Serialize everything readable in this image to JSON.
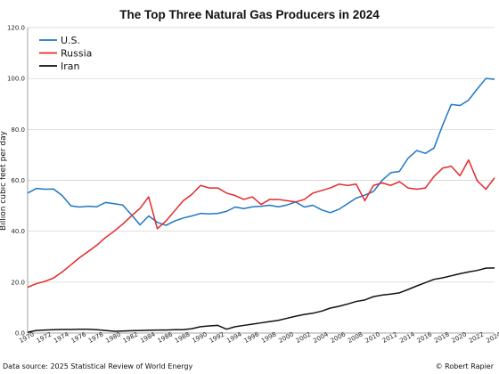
{
  "chart_data": {
    "type": "line",
    "title": "The Top Three Natural Gas Producers in 2024",
    "ylabel": "Billion cubic feet per day",
    "xlabel": "",
    "xlim": [
      1970,
      2024
    ],
    "ylim": [
      0,
      120
    ],
    "y_ticks": [
      "0.0",
      "20.0",
      "40.0",
      "60.0",
      "80.0",
      "100.0",
      "120.0"
    ],
    "x_ticks": [
      "1970",
      "1972",
      "1974",
      "1976",
      "1978",
      "1980",
      "1982",
      "1984",
      "1986",
      "1988",
      "1990",
      "1992",
      "1994",
      "1996",
      "1998",
      "2000",
      "2002",
      "2004",
      "2006",
      "2008",
      "2010",
      "2012",
      "2014",
      "2016",
      "2018",
      "2020",
      "2022",
      "2024"
    ],
    "grid": true,
    "legend_position": "top-left",
    "x": [
      1970,
      1971,
      1972,
      1973,
      1974,
      1975,
      1976,
      1977,
      1978,
      1979,
      1980,
      1981,
      1982,
      1983,
      1984,
      1985,
      1986,
      1987,
      1988,
      1989,
      1990,
      1991,
      1992,
      1993,
      1994,
      1995,
      1996,
      1997,
      1998,
      1999,
      2000,
      2001,
      2002,
      2003,
      2004,
      2005,
      2006,
      2007,
      2008,
      2009,
      2010,
      2011,
      2012,
      2013,
      2014,
      2015,
      2016,
      2017,
      2018,
      2019,
      2020,
      2021,
      2022,
      2023,
      2024
    ],
    "series": [
      {
        "name": "U.S.",
        "color": "#1f77c4",
        "values": [
          55.0,
          56.8,
          56.5,
          56.6,
          54.0,
          50.0,
          49.5,
          49.8,
          49.6,
          51.3,
          50.8,
          50.3,
          46.5,
          42.5,
          46.0,
          43.5,
          42.3,
          44.0,
          45.2,
          46.0,
          47.0,
          46.8,
          47.0,
          47.8,
          49.5,
          48.9,
          49.6,
          49.8,
          50.2,
          49.6,
          50.3,
          51.5,
          49.5,
          50.2,
          48.4,
          47.3,
          48.6,
          50.8,
          53.0,
          54.2,
          55.6,
          60.0,
          63.0,
          63.5,
          68.7,
          71.7,
          70.6,
          72.7,
          81.7,
          89.8,
          89.4,
          91.5,
          95.9,
          100.0,
          99.7
        ]
      },
      {
        "name": "Russia",
        "color": "#e3282c",
        "values": [
          18.0,
          19.4,
          20.3,
          21.6,
          24.0,
          26.8,
          29.6,
          32.0,
          34.5,
          37.5,
          40.0,
          42.8,
          46.0,
          49.0,
          53.5,
          41.0,
          44.0,
          48.0,
          52.0,
          54.5,
          58.0,
          57.0,
          57.0,
          55.0,
          54.0,
          52.5,
          53.5,
          50.5,
          52.5,
          52.5,
          52.0,
          51.5,
          52.5,
          55.0,
          56.0,
          57.0,
          58.5,
          58.0,
          58.5,
          52.0,
          58.0,
          59.0,
          58.0,
          59.5,
          57.0,
          56.5,
          57.0,
          61.5,
          64.8,
          65.5,
          61.8,
          68.0,
          59.8,
          56.5,
          61.0
        ]
      },
      {
        "name": "Iran",
        "color": "#111111",
        "values": [
          0.3,
          1.0,
          1.2,
          1.3,
          1.4,
          1.4,
          1.5,
          1.5,
          1.3,
          1.0,
          0.7,
          0.8,
          0.9,
          1.0,
          1.1,
          1.2,
          1.2,
          1.3,
          1.3,
          1.7,
          2.5,
          2.8,
          3.0,
          1.5,
          2.5,
          3.0,
          3.5,
          4.0,
          4.5,
          5.0,
          5.8,
          6.6,
          7.3,
          7.8,
          8.6,
          9.8,
          10.5,
          11.4,
          12.4,
          13.0,
          14.3,
          14.9,
          15.3,
          15.8,
          17.1,
          18.5,
          19.8,
          21.1,
          21.7,
          22.5,
          23.3,
          24.0,
          24.6,
          25.5,
          25.6
        ]
      }
    ]
  },
  "footer": {
    "source": "Data source: 2025 Statistical Review of World Energy",
    "credit": "© Robert Rapier"
  }
}
